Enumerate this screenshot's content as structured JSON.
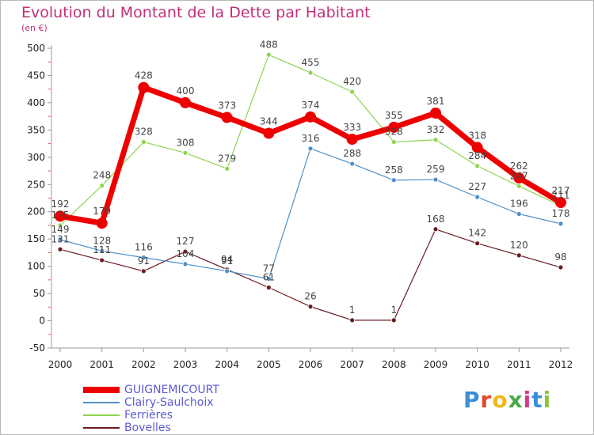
{
  "title": "Evolution du Montant de la Dette par Habitant",
  "unit_label": "(en €)",
  "logo": {
    "text": "Proxiti",
    "colors": [
      "#3a8fd6",
      "#e04a2a",
      "#f0b81a",
      "#4aa84a",
      "#d63a8a",
      "#3a8fd6",
      "#8ac43a"
    ]
  },
  "chart_data": {
    "type": "line",
    "title": "Evolution du Montant de la Dette par Habitant",
    "ylabel": "(en €)",
    "xlabel": "",
    "ylim": [
      -50,
      500
    ],
    "yticks": [
      -50,
      0,
      50,
      100,
      150,
      200,
      250,
      300,
      350,
      400,
      450,
      500
    ],
    "grid": false,
    "legend_position": "bottom-left",
    "categories": [
      "2000",
      "2001",
      "2002",
      "2003",
      "2004",
      "2005",
      "2006",
      "2007",
      "2008",
      "2009",
      "2010",
      "2011",
      "2012"
    ],
    "series": [
      {
        "name": "GUIGNEMICOURT",
        "color": "#ee0000",
        "values": [
          192,
          179,
          428,
          400,
          373,
          344,
          374,
          333,
          355,
          381,
          318,
          262,
          217
        ]
      },
      {
        "name": "Clairy-Saulchoix",
        "color": "#4f90c8",
        "values": [
          149,
          128,
          116,
          104,
          91,
          77,
          316,
          288,
          258,
          259,
          227,
          196,
          178
        ]
      },
      {
        "name": "Ferrières",
        "color": "#8ed44e",
        "values": [
          175,
          248,
          328,
          308,
          279,
          488,
          455,
          420,
          328,
          332,
          284,
          247,
          211
        ]
      },
      {
        "name": "Bovelles",
        "color": "#6b1a20",
        "values": [
          131,
          111,
          91,
          127,
          94,
          61,
          26,
          1,
          1,
          168,
          142,
          120,
          98
        ]
      }
    ]
  }
}
